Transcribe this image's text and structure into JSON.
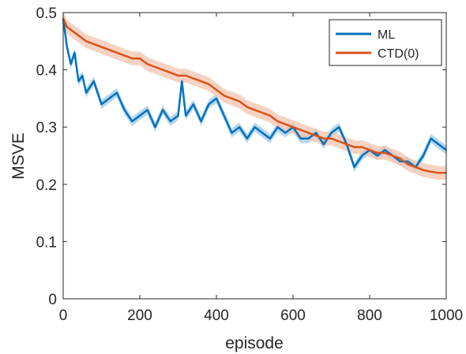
{
  "chart_data": {
    "type": "line",
    "title": "",
    "xlabel": "episode",
    "ylabel": "MSVE",
    "xlim": [
      0,
      1000
    ],
    "ylim": [
      0,
      0.5
    ],
    "xticks": [
      0,
      200,
      400,
      600,
      800,
      1000
    ],
    "yticks": [
      0,
      0.1,
      0.2,
      0.3,
      0.4,
      0.5
    ],
    "grid": false,
    "legend_position": "top-right",
    "x": [
      0,
      10,
      20,
      30,
      40,
      50,
      60,
      80,
      100,
      120,
      140,
      160,
      180,
      200,
      220,
      240,
      260,
      280,
      300,
      310,
      320,
      340,
      360,
      380,
      400,
      420,
      440,
      460,
      480,
      500,
      520,
      540,
      560,
      580,
      600,
      620,
      640,
      660,
      680,
      700,
      720,
      740,
      760,
      780,
      800,
      820,
      840,
      860,
      880,
      900,
      920,
      940,
      960,
      980,
      1000
    ],
    "series": [
      {
        "name": "ML",
        "color": "#0072BD",
        "band_color": "#9ecae8",
        "values": [
          0.49,
          0.44,
          0.41,
          0.43,
          0.38,
          0.39,
          0.36,
          0.38,
          0.34,
          0.35,
          0.36,
          0.33,
          0.31,
          0.32,
          0.33,
          0.3,
          0.33,
          0.31,
          0.32,
          0.38,
          0.32,
          0.34,
          0.31,
          0.34,
          0.35,
          0.32,
          0.29,
          0.3,
          0.28,
          0.3,
          0.29,
          0.28,
          0.3,
          0.29,
          0.3,
          0.28,
          0.28,
          0.29,
          0.27,
          0.29,
          0.3,
          0.27,
          0.23,
          0.25,
          0.26,
          0.25,
          0.26,
          0.25,
          0.24,
          0.24,
          0.23,
          0.25,
          0.28,
          0.27,
          0.26
        ],
        "band_halfwidth": 0.008
      },
      {
        "name": "CTD(0)",
        "color": "#D95319",
        "band_color": "#f3c3ad",
        "values": [
          0.49,
          0.475,
          0.47,
          0.465,
          0.46,
          0.455,
          0.45,
          0.445,
          0.44,
          0.435,
          0.43,
          0.425,
          0.42,
          0.42,
          0.41,
          0.405,
          0.4,
          0.395,
          0.39,
          0.39,
          0.39,
          0.385,
          0.38,
          0.375,
          0.365,
          0.355,
          0.35,
          0.345,
          0.335,
          0.33,
          0.325,
          0.32,
          0.31,
          0.305,
          0.3,
          0.295,
          0.29,
          0.285,
          0.28,
          0.28,
          0.275,
          0.27,
          0.265,
          0.265,
          0.26,
          0.255,
          0.255,
          0.25,
          0.245,
          0.235,
          0.23,
          0.225,
          0.222,
          0.22,
          0.22
        ],
        "band_halfwidth": 0.012
      }
    ]
  }
}
